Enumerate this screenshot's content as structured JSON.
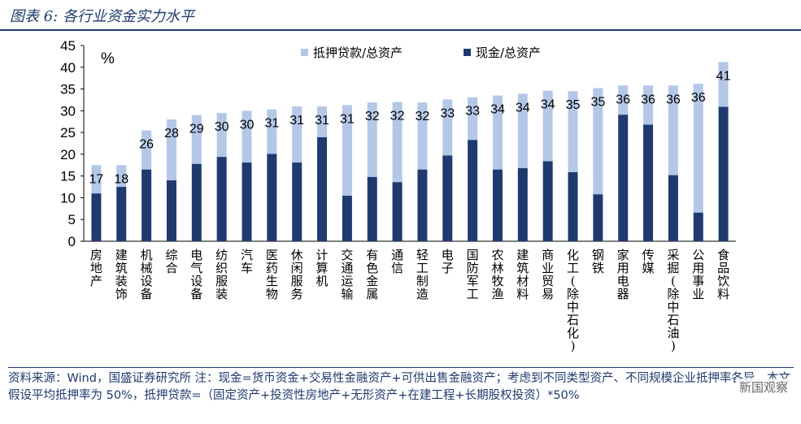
{
  "header": {
    "title": "图表 6:  各行业资金实力水平"
  },
  "footer": {
    "note": "资料来源：Wind，国盛证券研究所 注：现金=货币资金+交易性金融资产+可供出售金融资产；考虑到不同类型资产、不同规模企业抵押率各异，本文假设平均抵押率为 50%，抵押贷款=（固定资产+投资性房地产+无形资产+在建工程+长期股权投资）*50%"
  },
  "watermark": {
    "text": "新国观察"
  },
  "chart_data": {
    "type": "bar",
    "stacked": true,
    "title": "",
    "xlabel": "",
    "ylabel": "%",
    "ylim": [
      0,
      45
    ],
    "yticks": [
      0,
      5,
      10,
      15,
      20,
      25,
      30,
      35,
      40,
      45
    ],
    "grid": false,
    "legend_position": "top",
    "categories": [
      "房地产",
      "建筑装饰",
      "机械设备",
      "综合",
      "电气设备",
      "纺织服装",
      "汽车",
      "医药生物",
      "休闲服务",
      "计算机",
      "交通运输",
      "有色金属",
      "通信",
      "轻工制造",
      "电子",
      "国防军工",
      "农林牧渔",
      "建筑材料",
      "商业贸易",
      "化工(除中石化)",
      "钢铁",
      "家用电器",
      "传媒",
      "采掘(除中石油)",
      "公用事业",
      "食品饮料"
    ],
    "series": [
      {
        "name": "现金/总资产",
        "color": "#1f3a6e",
        "values": [
          11,
          12.5,
          16.5,
          14,
          17.8,
          19.4,
          18.1,
          20.1,
          18.1,
          23.9,
          10.5,
          14.8,
          13.6,
          16.5,
          19.7,
          23.3,
          16.5,
          16.8,
          18.4,
          15.9,
          10.8,
          29.1,
          26.8,
          15.2,
          6.6,
          30.9
        ]
      },
      {
        "name": "抵押贷款/总资产",
        "color": "#b4c7e7",
        "values": [
          6.5,
          5,
          9,
          14,
          11.2,
          10.1,
          11.9,
          10.2,
          12.9,
          7.1,
          20.8,
          17.1,
          18.4,
          15.4,
          12.9,
          9.8,
          17,
          17.1,
          16.2,
          18.6,
          24.4,
          6.7,
          9.0,
          20.6,
          29.6,
          10.3
        ]
      }
    ],
    "labels": [
      "17",
      "18",
      "26",
      "28",
      "29",
      "30",
      "30",
      "31",
      "31",
      "31",
      "31",
      "32",
      "32",
      "32",
      "33",
      "33",
      "34",
      "34",
      "34",
      "35",
      "35",
      "36",
      "36",
      "36",
      "36",
      "41"
    ]
  }
}
